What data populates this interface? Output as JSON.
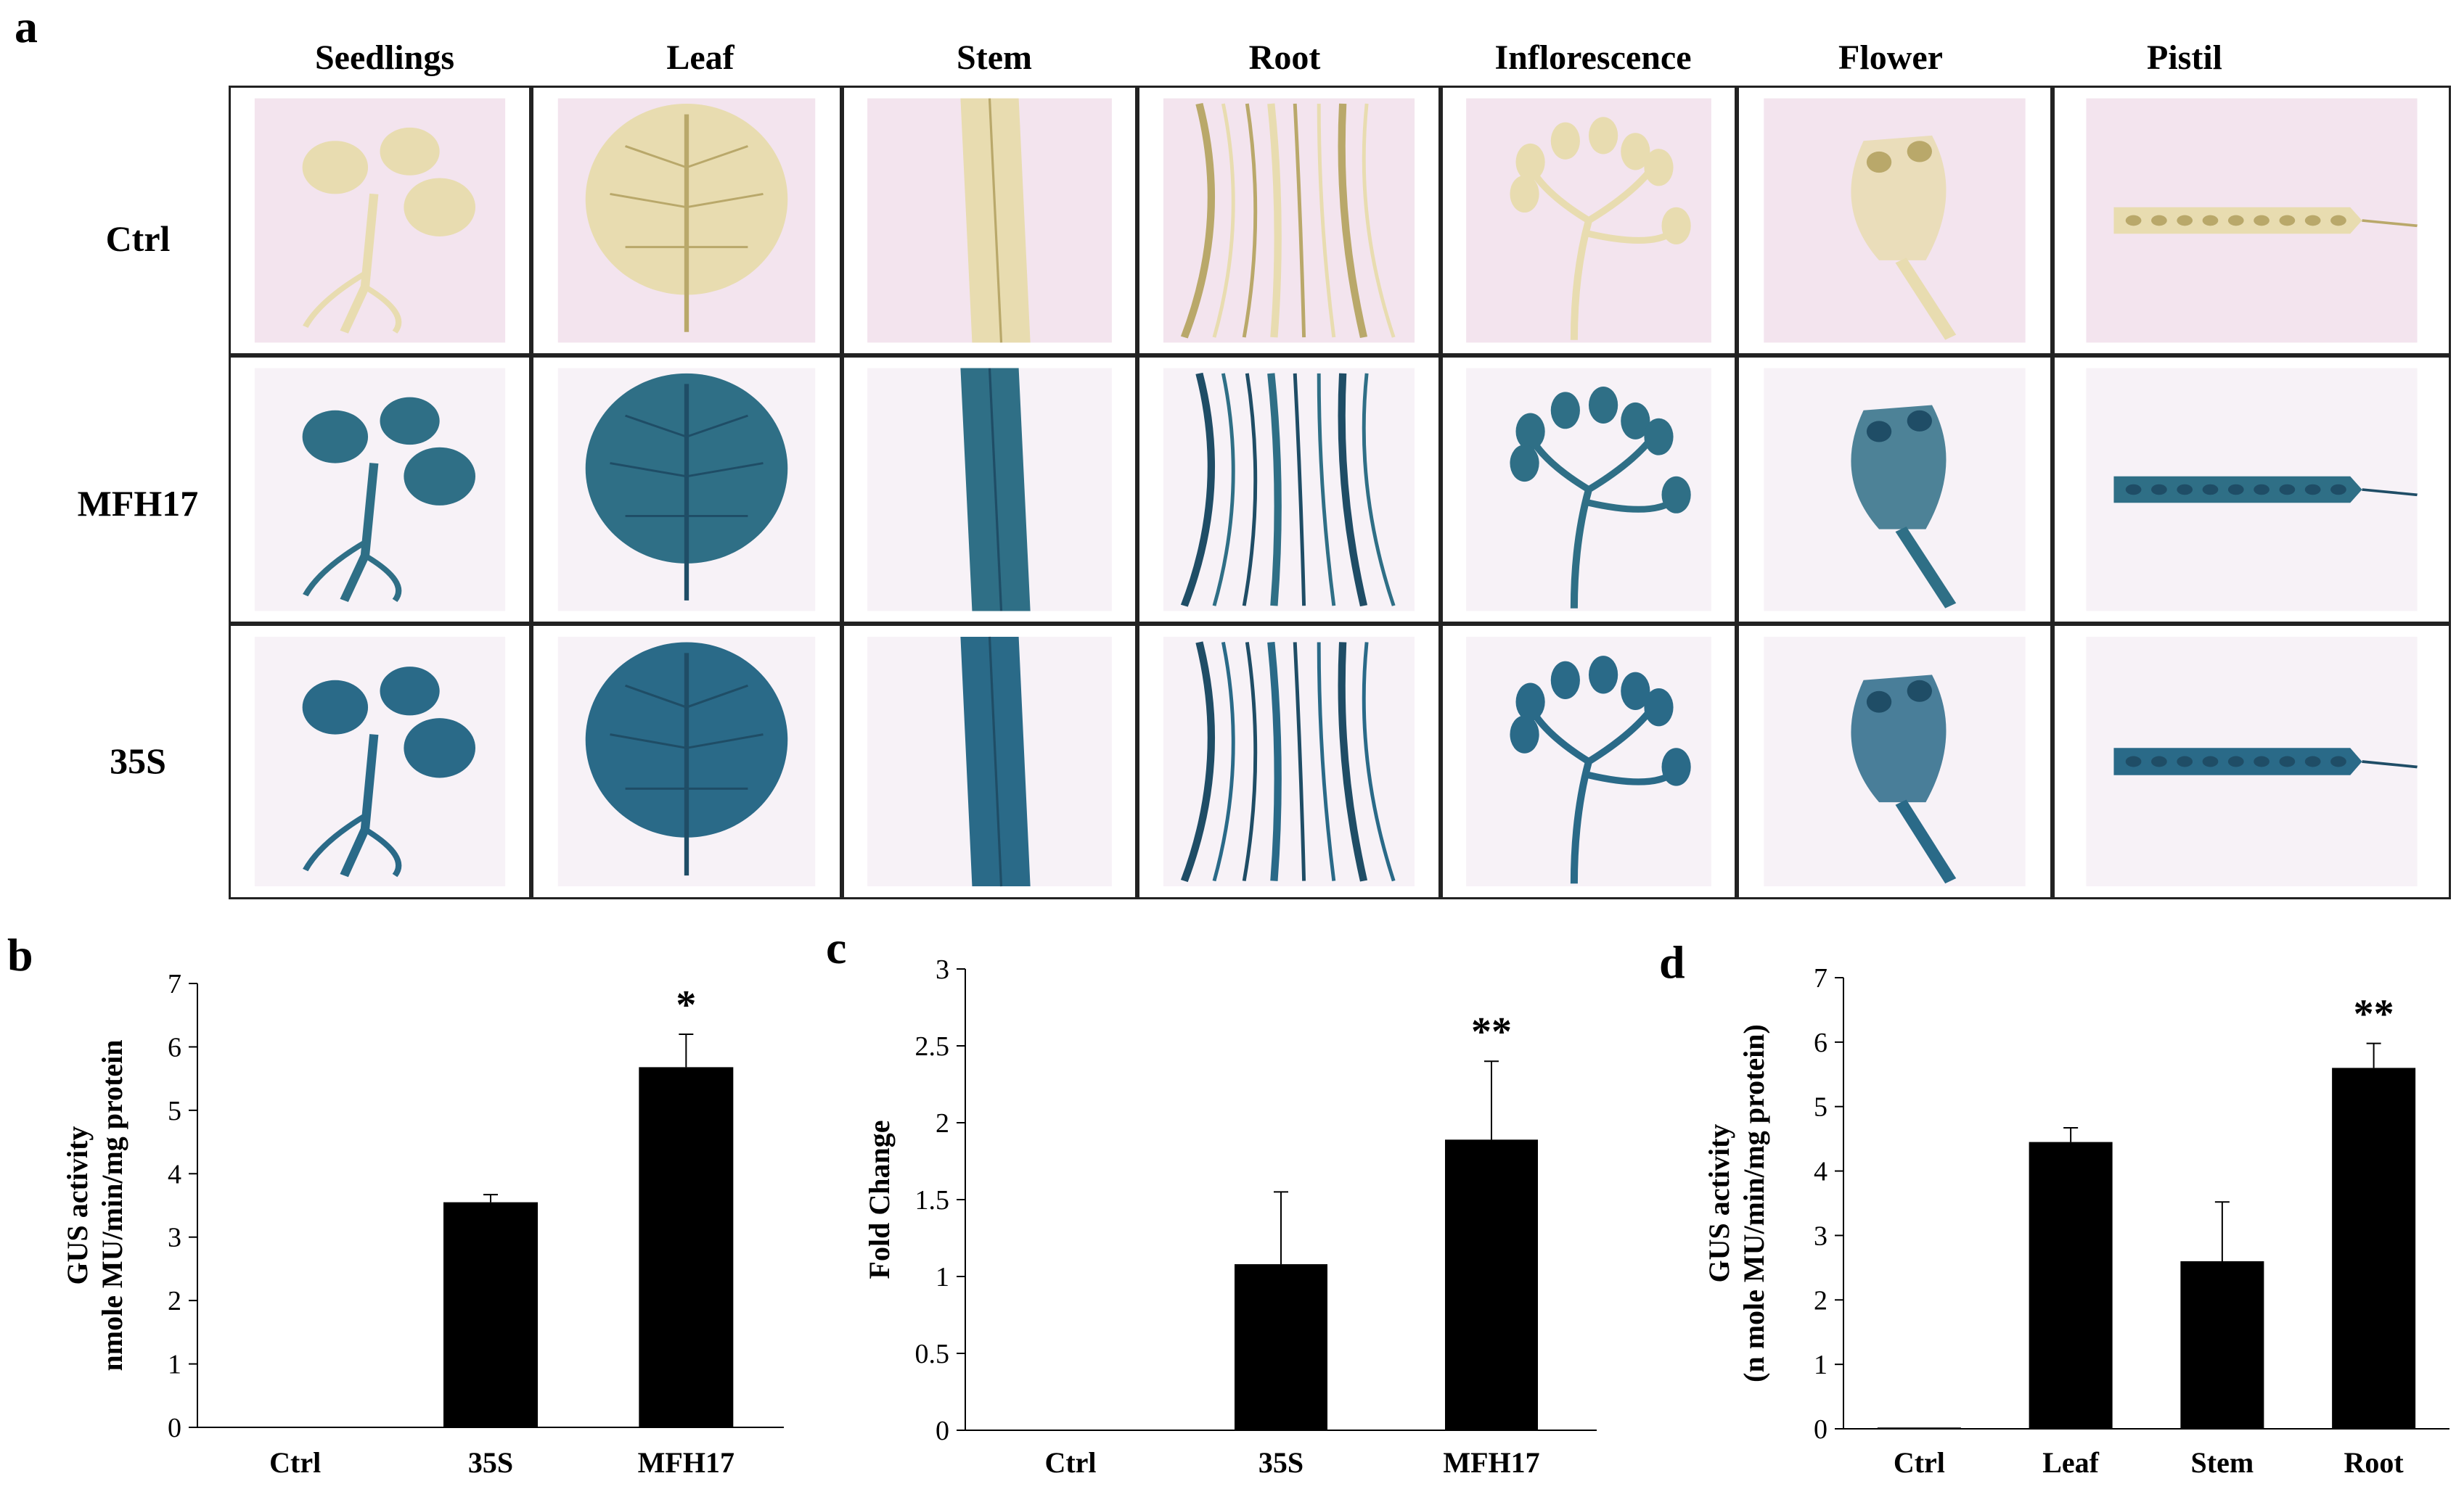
{
  "panels": {
    "a": "a",
    "b": "b",
    "c": "c",
    "d": "d"
  },
  "panel_a": {
    "columns": [
      "Seedlings",
      "Leaf",
      "Stem",
      "Root",
      "Inflorescence",
      "Flower",
      "Pistil"
    ],
    "rows": [
      "Ctrl",
      "MFH17",
      "35S"
    ],
    "stain_colors": {
      "Ctrl": "#e8dcb0",
      "MFH17": "#2f6f86",
      "35S": "#2a6a88"
    },
    "background_colors": {
      "Ctrl": "#f3e4ee",
      "MFH17": "#f7f2f7",
      "35S": "#f7f2f7"
    }
  },
  "chart_data": [
    {
      "type": "bar",
      "panel": "b",
      "categories": [
        "Ctrl",
        "35S",
        "MFH17"
      ],
      "values": [
        0,
        3.55,
        5.68
      ],
      "errors": [
        0,
        0.12,
        0.52
      ],
      "significance": [
        "",
        "",
        "*"
      ],
      "ylabel_lines": [
        "GUS activity",
        "nmole MU/min/mg protein"
      ],
      "ylim": [
        0,
        7
      ],
      "yticks": [
        0,
        1,
        2,
        3,
        4,
        5,
        6,
        7
      ],
      "ytick_labels": [
        "0",
        "1",
        "2",
        "3",
        "4",
        "5",
        "6",
        "7"
      ],
      "bar_color": "#000000"
    },
    {
      "type": "bar",
      "panel": "c",
      "categories": [
        "Ctrl",
        "35S",
        "MFH17"
      ],
      "values": [
        0,
        1.08,
        1.89
      ],
      "errors": [
        0,
        0.47,
        0.51
      ],
      "significance": [
        "",
        "",
        "**"
      ],
      "ylabel_lines": [
        "Fold Change"
      ],
      "ylim": [
        0,
        3
      ],
      "yticks": [
        0,
        0.5,
        1,
        1.5,
        2,
        2.5,
        3
      ],
      "ytick_labels": [
        "0",
        "0.5",
        "1",
        "1.5",
        "2",
        "2.5",
        "3"
      ],
      "bar_color": "#000000"
    },
    {
      "type": "bar",
      "panel": "d",
      "categories": [
        "Ctrl",
        "Leaf",
        "Stem",
        "Root"
      ],
      "values": [
        0.02,
        4.45,
        2.6,
        5.6
      ],
      "errors": [
        0,
        0.22,
        0.92,
        0.38
      ],
      "significance": [
        "",
        "",
        "",
        "**"
      ],
      "ylabel_lines": [
        "GUS activity",
        "(n mole MU/min/mg protein)"
      ],
      "ylim": [
        0,
        7
      ],
      "yticks": [
        0,
        1,
        2,
        3,
        4,
        5,
        6,
        7
      ],
      "ytick_labels": [
        "0",
        "1",
        "2",
        "3",
        "4",
        "5",
        "6",
        "7"
      ],
      "bar_color": "#000000"
    }
  ]
}
